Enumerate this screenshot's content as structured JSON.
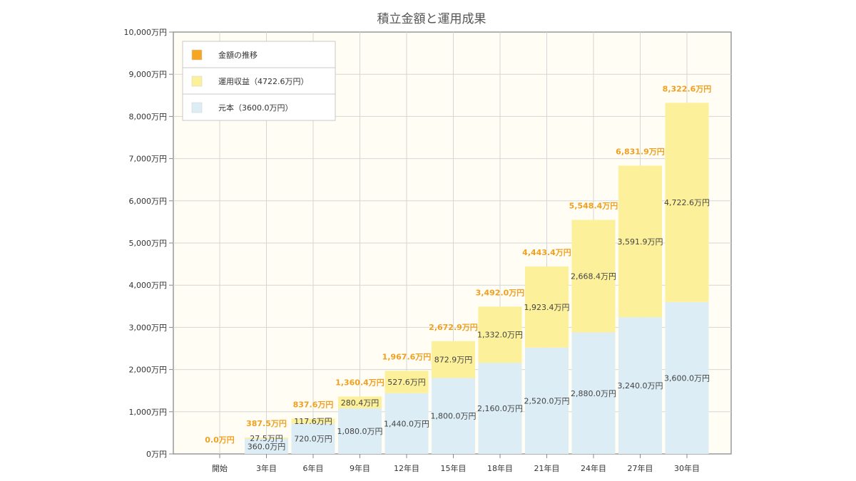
{
  "chart_data": {
    "type": "bar",
    "stacked": true,
    "title": "積立金額と運用成果",
    "categories": [
      "開始",
      "3年目",
      "6年目",
      "9年目",
      "12年目",
      "15年目",
      "18年目",
      "21年目",
      "24年目",
      "27年目",
      "30年目"
    ],
    "y_tick_labels": [
      "0万円",
      "1,000万円",
      "2,000万円",
      "3,000万円",
      "4,000万円",
      "5,000万円",
      "6,000万円",
      "7,000万円",
      "8,000万円",
      "9,000万円",
      "10,000万円"
    ],
    "ylim": [
      0,
      10000
    ],
    "grid": true,
    "legend_position": "top-left",
    "legend": [
      {
        "label": "金額の推移",
        "color": "#f5a623"
      },
      {
        "label": "運用収益（4722.6万円）",
        "color": "#fdf09a"
      },
      {
        "label": "元本（3600.0万円）",
        "color": "#dcedf5"
      }
    ],
    "series": [
      {
        "name": "元本（3600.0万円）",
        "color": "#dcedf5",
        "values": [
          0,
          360,
          720,
          1080,
          1440,
          1800,
          2160,
          2520,
          2880,
          3240,
          3600
        ],
        "labels": [
          "",
          "360.0万円",
          "720.0万円",
          "1,080.0万円",
          "1,440.0万円",
          "1,800.0万円",
          "2,160.0万円",
          "2,520.0万円",
          "2,880.0万円",
          "3,240.0万円",
          "3,600.0万円"
        ]
      },
      {
        "name": "運用収益（4722.6万円）",
        "color": "#fdf09a",
        "values": [
          0,
          27.5,
          117.6,
          280.4,
          527.6,
          872.9,
          1332.0,
          1923.4,
          2668.4,
          3591.9,
          4722.6
        ],
        "labels": [
          "",
          "27.5万円",
          "117.6万円",
          "280.4万円",
          "527.6万円",
          "872.9万円",
          "1,332.0万円",
          "1,923.4万円",
          "2,668.4万円",
          "3,591.9万円",
          "4,722.6万円"
        ]
      }
    ],
    "totals": {
      "name": "金額の推移",
      "color": "#f0a020",
      "values": [
        0,
        387.5,
        837.6,
        1360.4,
        1967.6,
        2672.9,
        3492.0,
        4443.4,
        5548.4,
        6831.9,
        8322.6
      ],
      "labels": [
        "0.0万円",
        "387.5万円",
        "837.6万円",
        "1,360.4万円",
        "1,967.6万円",
        "2,672.9万円",
        "3,492.0万円",
        "4,443.4万円",
        "5,548.4万円",
        "6,831.9万円",
        "8,322.6万円"
      ]
    }
  }
}
